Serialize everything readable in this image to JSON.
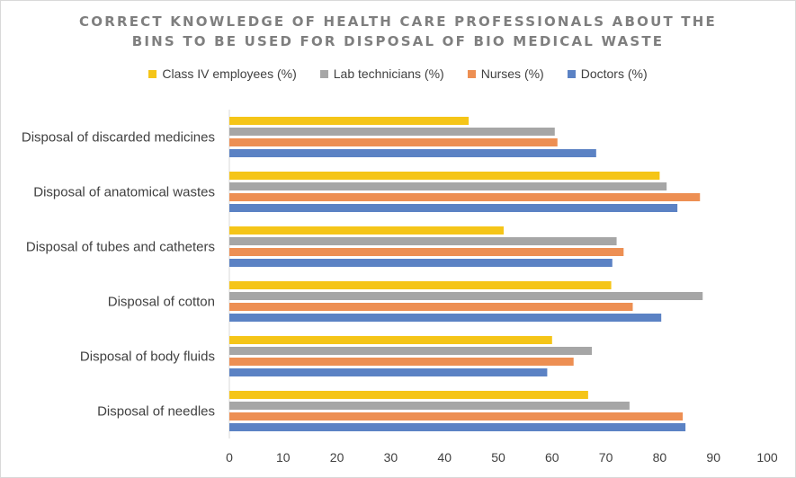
{
  "chart_data": {
    "type": "bar",
    "orientation": "horizontal",
    "title_lines": [
      "CORRECT KNOWLEDGE OF HEALTH CARE PROFESSIONALS ABOUT THE",
      "BINS TO BE USED FOR DISPOSAL OF BIO MEDICAL WASTE"
    ],
    "legend_placement": "top",
    "categories": [
      "Disposal of discarded medicines",
      "Disposal of anatomical wastes",
      "Disposal of tubes and catheters",
      "Disposal of cotton",
      "Disposal of body fluids",
      "Disposal of needles"
    ],
    "series": [
      {
        "name": "Class IV employees (%)",
        "color": "#f5c518",
        "values": [
          44.5,
          80,
          51,
          71,
          60,
          66.7
        ]
      },
      {
        "name": "Lab technicians (%)",
        "color": "#a6a6a6",
        "values": [
          60.5,
          81.3,
          72,
          88,
          67.4,
          74.4
        ]
      },
      {
        "name": "Nurses (%)",
        "color": "#ed8f53",
        "values": [
          61,
          87.5,
          73.3,
          75,
          64,
          84.3
        ]
      },
      {
        "name": "Doctors (%)",
        "color": "#5b82c4",
        "values": [
          68.2,
          83.3,
          71.2,
          80.3,
          59.1,
          84.8
        ]
      }
    ],
    "xlim": [
      0,
      100
    ],
    "xticks": [
      "0",
      "10",
      "20",
      "30",
      "40",
      "50",
      "60",
      "70",
      "80",
      "90",
      "100"
    ],
    "grid": false
  }
}
